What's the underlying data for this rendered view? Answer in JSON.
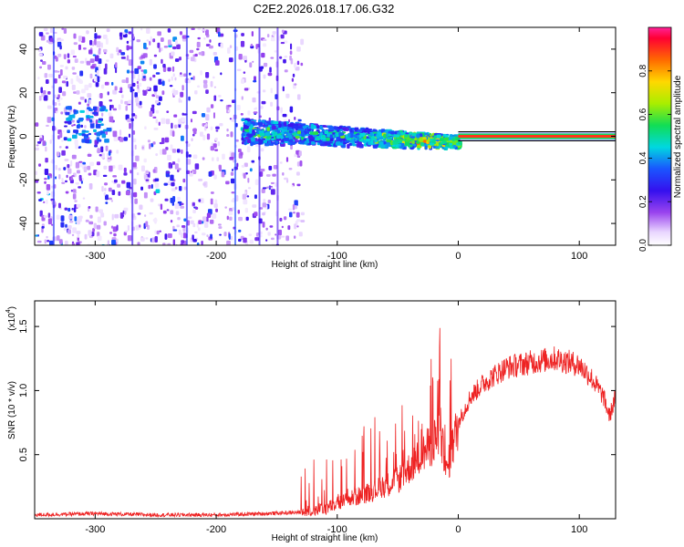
{
  "title": "C2E2.2026.018.17.06.G32",
  "colors": {
    "line": "#ee2222",
    "frame": "#000000"
  },
  "chart_data": [
    {
      "type": "heatmap",
      "xlabel": "Height of straight line (km)",
      "ylabel": "Frequency (Hz)",
      "xlim": [
        -350,
        130
      ],
      "ylim": [
        -50,
        50
      ],
      "x_ticks": [
        -300,
        -200,
        -100,
        0,
        100
      ],
      "x_tick_labels": [
        "-300",
        "-200",
        "-100",
        "0",
        "100"
      ],
      "y_ticks": [
        -40,
        -20,
        0,
        20,
        40
      ],
      "y_tick_labels": [
        "-40",
        "-20",
        "0",
        "20",
        "40"
      ],
      "colorbar": {
        "label": "Normalized spectral amplitude",
        "range": [
          0,
          1
        ],
        "ticks": [
          0.0,
          0.2,
          0.4,
          0.6,
          0.8
        ],
        "tick_labels": [
          "0.0",
          "0.2",
          "0.4",
          "0.6",
          "0.8"
        ]
      },
      "features": [
        {
          "name": "noise_region",
          "x_range": [
            -350,
            -130
          ],
          "freq_range": [
            -50,
            50
          ],
          "amplitude": 0.2
        },
        {
          "name": "signal_band",
          "x_range": [
            -180,
            0
          ],
          "freq_center": [
            3,
            -2
          ],
          "freq_width": 8,
          "amplitude": 0.45
        },
        {
          "name": "carrier_line",
          "x_range": [
            0,
            130
          ],
          "freq_center": 0,
          "amplitude": 0.9
        }
      ]
    },
    {
      "type": "line",
      "xlabel": "Height of straight line (km)",
      "ylabel": "SNR (10 * v/v)",
      "y_scale_label": "(x10",
      "y_scale_exponent": "4",
      "y_scale_suffix": ")",
      "xlim": [
        -350,
        130
      ],
      "ylim": [
        0,
        1.7
      ],
      "x_ticks": [
        -300,
        -200,
        -100,
        0,
        100
      ],
      "x_tick_labels": [
        "-300",
        "-200",
        "-100",
        "0",
        "100"
      ],
      "y_ticks": [
        0.5,
        1.0,
        1.5
      ],
      "y_tick_labels": [
        "0.5",
        "1.0",
        "1.5"
      ],
      "series": [
        {
          "name": "SNR",
          "x": [
            -350,
            -300,
            -250,
            -200,
            -160,
            -130,
            -110,
            -90,
            -70,
            -50,
            -40,
            -30,
            -20,
            -15,
            -10,
            -5,
            0,
            10,
            20,
            30,
            40,
            60,
            80,
            100,
            110,
            120,
            125,
            130
          ],
          "values": [
            0.03,
            0.04,
            0.03,
            0.03,
            0.04,
            0.05,
            0.08,
            0.15,
            0.22,
            0.3,
            0.4,
            0.5,
            0.6,
            0.7,
            0.35,
            0.55,
            0.75,
            0.95,
            1.05,
            1.12,
            1.18,
            1.22,
            1.25,
            1.2,
            1.1,
            0.95,
            0.8,
            0.95
          ]
        }
      ]
    }
  ]
}
